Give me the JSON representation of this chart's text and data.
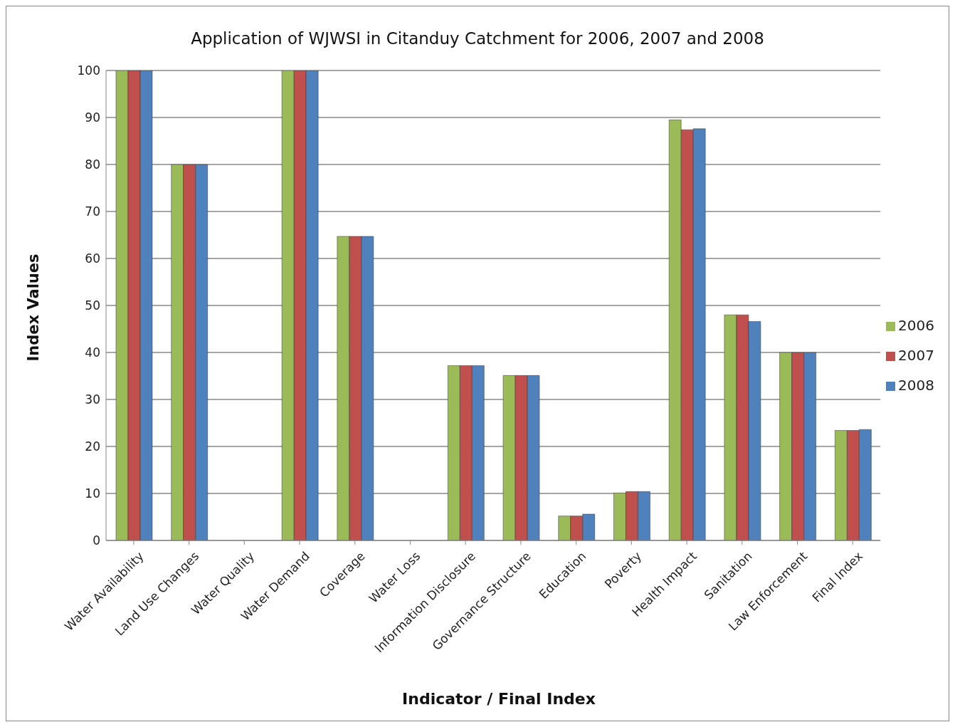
{
  "chart_data": {
    "type": "bar",
    "title": "Application of WJWSI in Citanduy Catchment for 2006, 2007 and 2008",
    "xlabel": "Indicator / Final Index",
    "ylabel": "Index Values",
    "categories": [
      "Water Availability",
      "Land Use Changes",
      "Water Quality",
      "Water Demand",
      "Coverage",
      "Water Loss",
      "Information Disclosure",
      "Governance Structure",
      "Education",
      "Poverty",
      "Health Impact",
      "Sanitation",
      "Law Enforcement",
      "Final Index"
    ],
    "series": [
      {
        "name": "2006",
        "color": "#9bbb59",
        "values": [
          100,
          80,
          0,
          100,
          64.7,
          0,
          37.2,
          35.1,
          5.2,
          10.1,
          89.5,
          48.0,
          40,
          23.4
        ]
      },
      {
        "name": "2007",
        "color": "#c0504d",
        "values": [
          100,
          80,
          0,
          100,
          64.7,
          0,
          37.2,
          35.1,
          5.2,
          10.4,
          87.4,
          48.0,
          40,
          23.4
        ]
      },
      {
        "name": "2008",
        "color": "#4f81bd",
        "values": [
          100,
          80,
          0,
          100,
          64.7,
          0,
          37.2,
          35.1,
          5.6,
          10.4,
          87.6,
          46.6,
          40,
          23.6
        ]
      }
    ],
    "ylim": [
      0,
      100
    ],
    "yticks": [
      0,
      10,
      20,
      30,
      40,
      50,
      60,
      70,
      80,
      90,
      100
    ],
    "grid": "y",
    "legend": "right"
  }
}
